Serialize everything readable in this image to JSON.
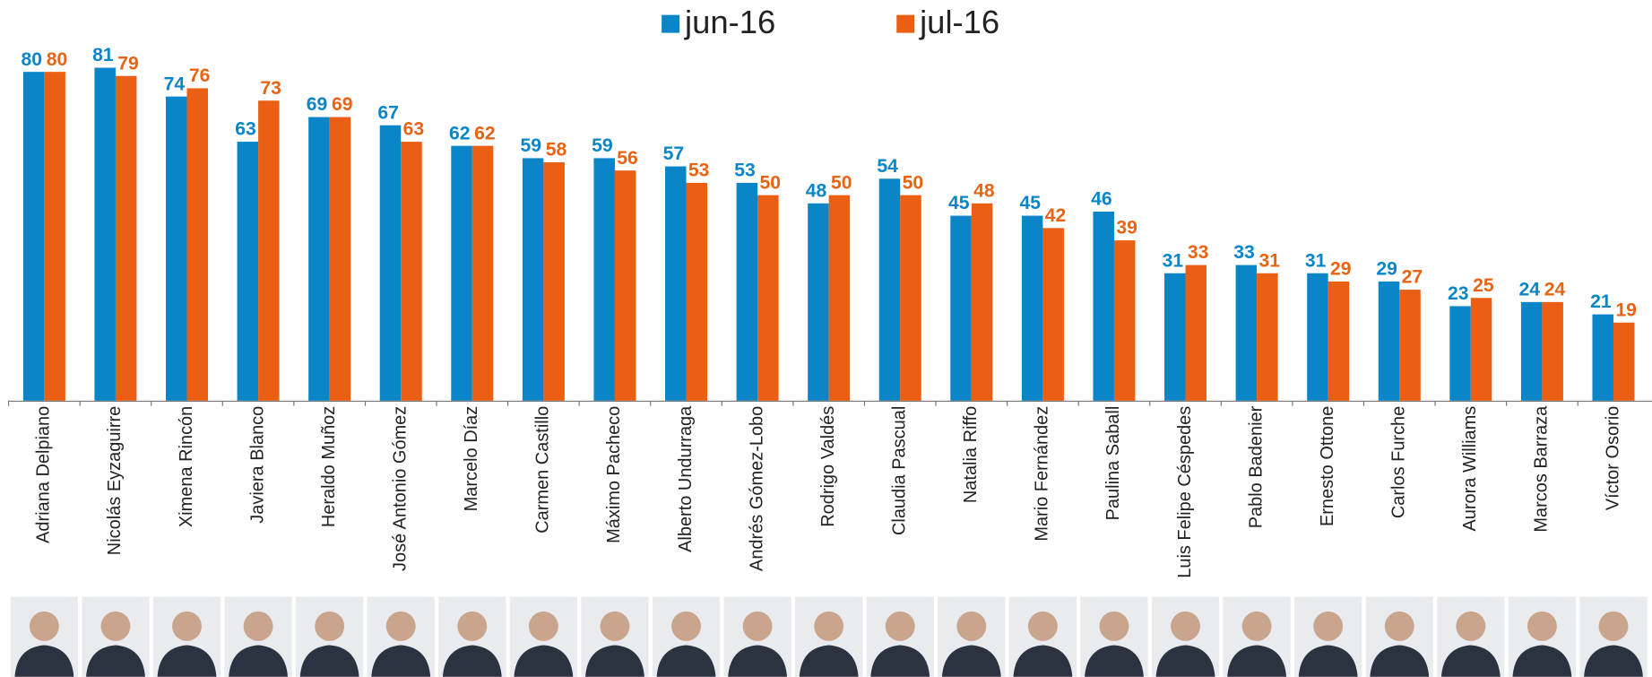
{
  "chart_data": {
    "type": "bar",
    "categories": [
      "Adriana Delpiano",
      "Nicolás Eyzaguirre",
      "Ximena Rincón",
      "Javiera Blanco",
      "Heraldo Muñoz",
      "José Antonio Gómez",
      "Marcelo Díaz",
      "Carmen Castillo",
      "Máximo Pacheco",
      "Alberto Undurraga",
      "Andrés Gómez-Lobo",
      "Rodrigo Valdés",
      "Claudia Pascual",
      "Natalia Riffo",
      "Mario Fernández",
      "Paulina Saball",
      "Luis Felipe Céspedes",
      "Pablo Badenier",
      "Ernesto Ottone",
      "Carlos Furche",
      "Aurora Williams",
      "Marcos Barraza",
      "Víctor Osorio"
    ],
    "series": [
      {
        "name": "jun-16",
        "color": "#0a86c8",
        "label_color": "#0a86c8",
        "values": [
          80,
          81,
          74,
          63,
          69,
          67,
          62,
          59,
          59,
          57,
          53,
          48,
          54,
          45,
          45,
          46,
          31,
          33,
          31,
          29,
          23,
          24,
          21
        ]
      },
      {
        "name": "jul-16",
        "color": "#ea5f13",
        "label_color": "#e86414",
        "values": [
          80,
          79,
          76,
          73,
          69,
          63,
          62,
          58,
          56,
          53,
          50,
          50,
          50,
          48,
          42,
          39,
          33,
          31,
          29,
          27,
          25,
          24,
          19
        ]
      }
    ],
    "legend": "top"
  }
}
